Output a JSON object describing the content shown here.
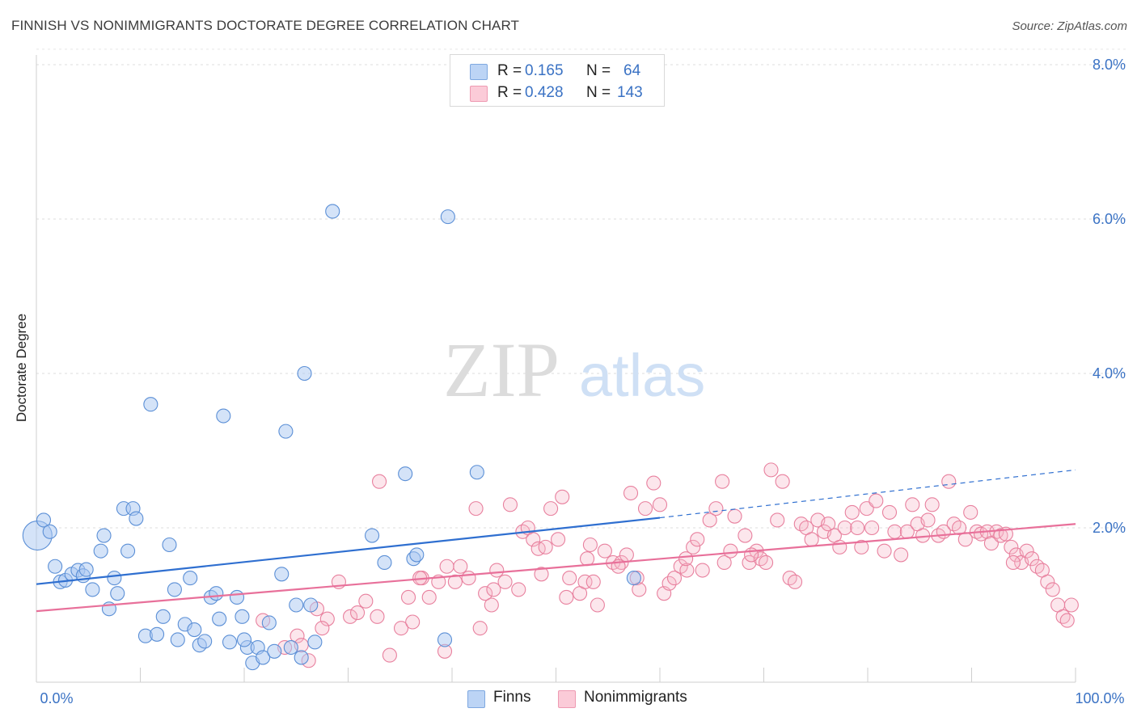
{
  "header": {
    "title": "FINNISH VS NONIMMIGRANTS DOCTORATE DEGREE CORRELATION CHART",
    "source": "Source: ZipAtlas.com"
  },
  "watermark": {
    "zip": "ZIP",
    "atlas": "atlas"
  },
  "legend": {
    "rows": [
      {
        "r_label": "R =",
        "r_value": "0.165",
        "n_label": "N =",
        "n_value": "64",
        "color": "#a9c8f2"
      },
      {
        "r_label": "R =",
        "r_value": "0.428",
        "n_label": "N =",
        "n_value": "143",
        "color": "#f7b6c8"
      }
    ]
  },
  "bottom_legend": {
    "finns": "Finns",
    "nonimmigrants": "Nonimmigrants"
  },
  "colors": {
    "finns_fill": "#a9c8f2",
    "finns_stroke": "#5b8fd6",
    "finns_line": "#2f6fd0",
    "non_fill": "#f7b6c8",
    "non_stroke": "#e8809e",
    "non_line": "#e8709a",
    "axis_label": "#3a72c4"
  },
  "chart_data": {
    "type": "scatter",
    "title": "FINNISH VS NONIMMIGRANTS DOCTORATE DEGREE CORRELATION CHART",
    "xlabel": "",
    "ylabel": "Doctorate Degree",
    "xlim": [
      0,
      100
    ],
    "ylim": [
      0,
      8.2
    ],
    "x_tick_labels": [
      "0.0%",
      "100.0%"
    ],
    "y_ticks": [
      2,
      4,
      6,
      8
    ],
    "y_tick_labels": [
      "2.0%",
      "4.0%",
      "6.0%",
      "8.0%"
    ],
    "grid": true,
    "legend_position": "top-center",
    "series": [
      {
        "name": "Finns",
        "R": 0.165,
        "N": 64,
        "trend": {
          "x": [
            0,
            60,
            100
          ],
          "y": [
            1.27,
            2.13,
            2.75
          ],
          "solid_until_x": 60
        },
        "points": [
          [
            0.1,
            1.9
          ],
          [
            0.7,
            2.1
          ],
          [
            1.3,
            1.95
          ],
          [
            1.8,
            1.5
          ],
          [
            2.3,
            1.3
          ],
          [
            2.8,
            1.32
          ],
          [
            3.4,
            1.4
          ],
          [
            4.0,
            1.45
          ],
          [
            4.5,
            1.38
          ],
          [
            4.8,
            1.46
          ],
          [
            5.4,
            1.2
          ],
          [
            6.2,
            1.7
          ],
          [
            6.5,
            1.9
          ],
          [
            7.0,
            0.95
          ],
          [
            7.5,
            1.35
          ],
          [
            7.8,
            1.15
          ],
          [
            8.4,
            2.25
          ],
          [
            8.8,
            1.7
          ],
          [
            9.3,
            2.25
          ],
          [
            9.6,
            2.12
          ],
          [
            10.5,
            0.6
          ],
          [
            11.0,
            3.6
          ],
          [
            11.6,
            0.62
          ],
          [
            12.2,
            0.85
          ],
          [
            12.8,
            1.78
          ],
          [
            13.3,
            1.2
          ],
          [
            13.6,
            0.55
          ],
          [
            14.3,
            0.75
          ],
          [
            14.8,
            1.35
          ],
          [
            15.2,
            0.68
          ],
          [
            15.7,
            0.48
          ],
          [
            16.2,
            0.53
          ],
          [
            16.8,
            1.1
          ],
          [
            17.3,
            1.15
          ],
          [
            17.6,
            0.82
          ],
          [
            18.0,
            3.45
          ],
          [
            18.6,
            0.52
          ],
          [
            19.3,
            1.1
          ],
          [
            19.8,
            0.85
          ],
          [
            20.3,
            0.45
          ],
          [
            20.8,
            0.25
          ],
          [
            21.3,
            0.45
          ],
          [
            21.8,
            0.32
          ],
          [
            22.4,
            0.77
          ],
          [
            23.6,
            1.4
          ],
          [
            24.0,
            3.25
          ],
          [
            24.5,
            0.45
          ],
          [
            25.5,
            0.32
          ],
          [
            25.8,
            4.0
          ],
          [
            26.8,
            0.52
          ],
          [
            28.5,
            6.1
          ],
          [
            32.3,
            1.9
          ],
          [
            33.5,
            1.55
          ],
          [
            35.5,
            2.7
          ],
          [
            36.3,
            1.6
          ],
          [
            36.6,
            1.65
          ],
          [
            39.3,
            0.55
          ],
          [
            39.6,
            6.03
          ],
          [
            42.4,
            2.72
          ],
          [
            57.5,
            1.35
          ],
          [
            25.0,
            1.0
          ],
          [
            22.9,
            0.4
          ],
          [
            20.0,
            0.55
          ],
          [
            26.4,
            1.0
          ]
        ]
      },
      {
        "name": "Nonimmigrants",
        "R": 0.428,
        "N": 143,
        "trend": {
          "x": [
            0,
            100
          ],
          "y": [
            0.92,
            2.05
          ]
        },
        "points": [
          [
            21.8,
            0.8
          ],
          [
            23.9,
            0.45
          ],
          [
            25.1,
            0.6
          ],
          [
            25.5,
            0.48
          ],
          [
            26.2,
            0.28
          ],
          [
            27.0,
            0.95
          ],
          [
            28.0,
            0.82
          ],
          [
            29.1,
            1.3
          ],
          [
            30.2,
            0.85
          ],
          [
            30.9,
            0.9
          ],
          [
            31.7,
            1.05
          ],
          [
            32.8,
            0.85
          ],
          [
            34.0,
            0.35
          ],
          [
            35.1,
            0.7
          ],
          [
            35.8,
            1.1
          ],
          [
            36.2,
            0.78
          ],
          [
            37.1,
            1.35
          ],
          [
            37.8,
            1.1
          ],
          [
            38.7,
            1.3
          ],
          [
            39.3,
            0.4
          ],
          [
            40.3,
            1.3
          ],
          [
            40.8,
            1.5
          ],
          [
            41.6,
            1.35
          ],
          [
            42.3,
            2.25
          ],
          [
            42.7,
            0.7
          ],
          [
            43.2,
            1.15
          ],
          [
            43.8,
            1.0
          ],
          [
            44.3,
            1.45
          ],
          [
            45.1,
            1.3
          ],
          [
            45.6,
            2.3
          ],
          [
            46.4,
            1.2
          ],
          [
            46.8,
            1.95
          ],
          [
            47.3,
            2.0
          ],
          [
            47.8,
            1.85
          ],
          [
            48.3,
            1.73
          ],
          [
            49.0,
            1.75
          ],
          [
            49.5,
            2.25
          ],
          [
            50.2,
            1.85
          ],
          [
            50.6,
            2.4
          ],
          [
            51.3,
            1.35
          ],
          [
            52.3,
            1.15
          ],
          [
            52.8,
            1.3
          ],
          [
            53.3,
            1.78
          ],
          [
            53.6,
            1.3
          ],
          [
            54.0,
            1.0
          ],
          [
            54.7,
            1.7
          ],
          [
            55.5,
            1.55
          ],
          [
            56.3,
            1.55
          ],
          [
            56.8,
            1.65
          ],
          [
            57.2,
            2.45
          ],
          [
            57.8,
            1.35
          ],
          [
            58.6,
            2.25
          ],
          [
            59.4,
            2.58
          ],
          [
            60.4,
            1.15
          ],
          [
            60.9,
            1.28
          ],
          [
            61.4,
            1.35
          ],
          [
            62.0,
            1.5
          ],
          [
            62.6,
            1.45
          ],
          [
            63.2,
            1.75
          ],
          [
            63.6,
            1.85
          ],
          [
            64.1,
            1.45
          ],
          [
            64.8,
            2.1
          ],
          [
            65.4,
            2.25
          ],
          [
            66.2,
            1.55
          ],
          [
            66.8,
            1.7
          ],
          [
            67.2,
            2.15
          ],
          [
            68.2,
            1.9
          ],
          [
            68.6,
            1.55
          ],
          [
            69.3,
            1.7
          ],
          [
            69.7,
            1.6
          ],
          [
            70.2,
            1.55
          ],
          [
            70.7,
            2.75
          ],
          [
            71.3,
            2.1
          ],
          [
            71.8,
            2.6
          ],
          [
            72.5,
            1.35
          ],
          [
            73.0,
            1.3
          ],
          [
            73.6,
            2.05
          ],
          [
            74.1,
            2.0
          ],
          [
            74.6,
            1.85
          ],
          [
            75.2,
            2.1
          ],
          [
            75.8,
            1.95
          ],
          [
            76.2,
            2.05
          ],
          [
            76.8,
            1.9
          ],
          [
            77.3,
            1.75
          ],
          [
            77.8,
            2.0
          ],
          [
            78.5,
            2.2
          ],
          [
            79.0,
            2.0
          ],
          [
            79.4,
            1.75
          ],
          [
            79.9,
            2.25
          ],
          [
            80.4,
            2.0
          ],
          [
            80.8,
            2.35
          ],
          [
            81.6,
            1.7
          ],
          [
            82.1,
            2.2
          ],
          [
            82.6,
            1.95
          ],
          [
            83.2,
            1.65
          ],
          [
            83.8,
            1.95
          ],
          [
            84.3,
            2.3
          ],
          [
            84.8,
            2.05
          ],
          [
            85.3,
            1.9
          ],
          [
            85.8,
            2.1
          ],
          [
            86.2,
            2.3
          ],
          [
            86.8,
            1.9
          ],
          [
            87.3,
            1.95
          ],
          [
            87.8,
            2.6
          ],
          [
            88.3,
            2.05
          ],
          [
            88.8,
            2.0
          ],
          [
            89.4,
            1.85
          ],
          [
            89.9,
            2.2
          ],
          [
            90.5,
            1.95
          ],
          [
            90.9,
            1.92
          ],
          [
            91.5,
            1.95
          ],
          [
            91.9,
            1.8
          ],
          [
            92.4,
            1.95
          ],
          [
            92.8,
            1.9
          ],
          [
            93.3,
            1.92
          ],
          [
            93.8,
            1.75
          ],
          [
            94.3,
            1.65
          ],
          [
            94.8,
            1.55
          ],
          [
            95.3,
            1.7
          ],
          [
            95.8,
            1.6
          ],
          [
            96.3,
            1.5
          ],
          [
            96.8,
            1.45
          ],
          [
            97.3,
            1.3
          ],
          [
            97.8,
            1.2
          ],
          [
            98.3,
            1.0
          ],
          [
            98.8,
            0.85
          ],
          [
            99.2,
            0.8
          ],
          [
            99.6,
            1.0
          ],
          [
            56.0,
            1.5
          ],
          [
            33.0,
            2.6
          ],
          [
            36.9,
            1.35
          ],
          [
            39.5,
            1.5
          ],
          [
            44.0,
            1.2
          ],
          [
            48.6,
            1.4
          ],
          [
            51.0,
            1.1
          ],
          [
            53.0,
            1.6
          ],
          [
            58.0,
            1.2
          ],
          [
            60.0,
            2.3
          ],
          [
            62.5,
            1.6
          ],
          [
            66.0,
            2.6
          ],
          [
            68.8,
            1.65
          ],
          [
            94.0,
            1.55
          ],
          [
            27.5,
            0.7
          ]
        ]
      }
    ]
  }
}
